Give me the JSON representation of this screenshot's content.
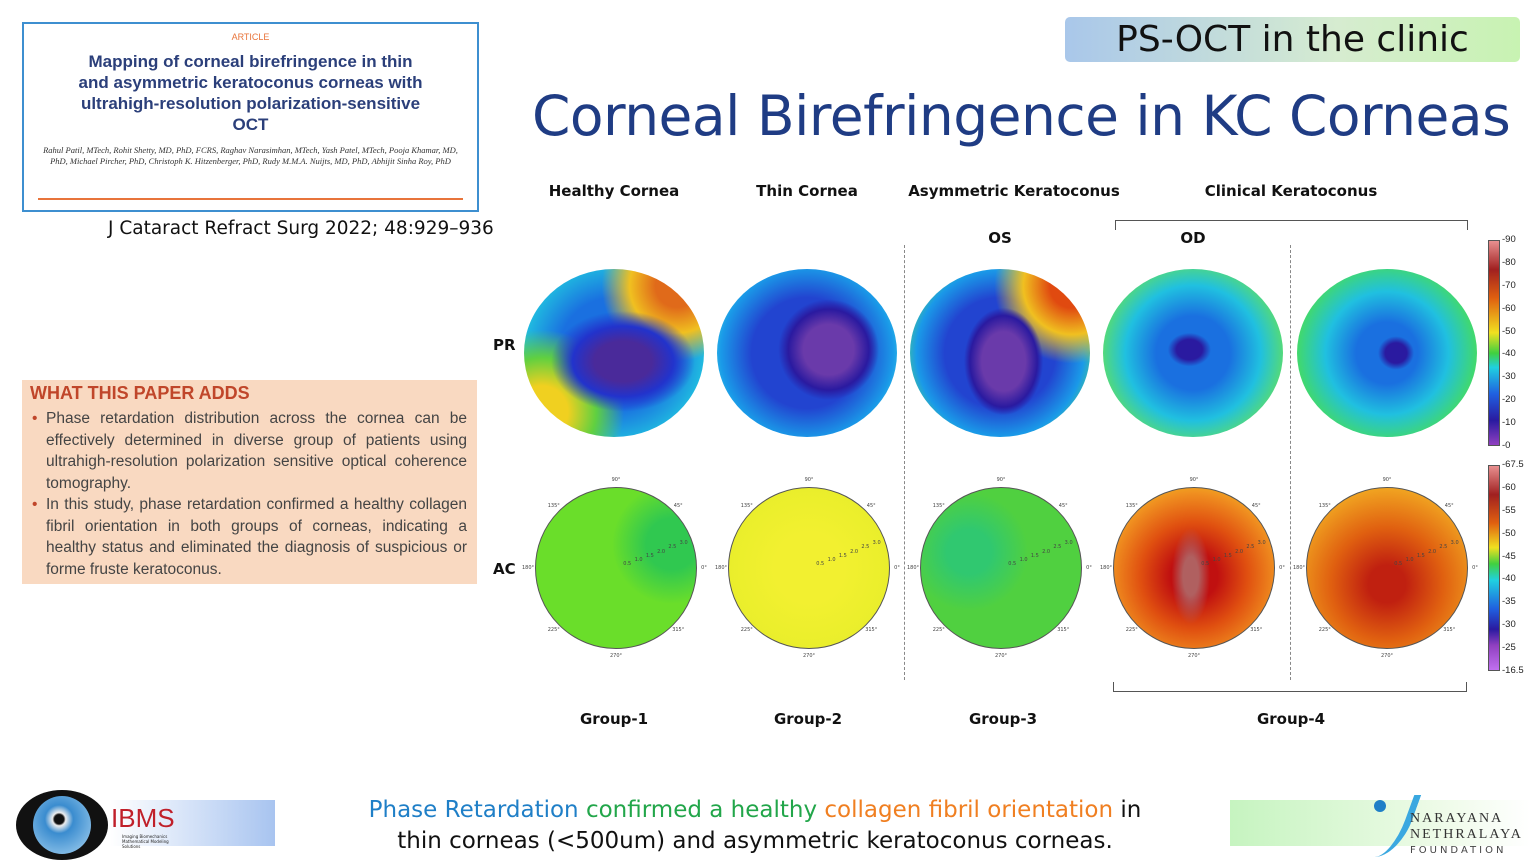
{
  "article": {
    "kind": "ARTICLE",
    "title": "Mapping of corneal birefringence in thin and asymmetric keratoconus corneas with ultrahigh-resolution polarization-sensitive OCT",
    "authors": "Rahul Patil, MTech, Rohit Shetty, MD, PhD, FCRS, Raghav Narasimhan, MTech, Yash Patel, MTech, Pooja Khamar, MD, PhD, Michael Pircher, PhD, Christoph K. Hitzenberger, PhD, Rudy M.M.A. Nuijts, MD, PhD, Abhijit Sinha Roy, PhD",
    "citation": "J Cataract Refract Surg 2022; 48:929–936"
  },
  "adds": {
    "heading": "WHAT THIS PAPER ADDS",
    "bullets": [
      "Phase retardation distribution across the cornea can be effectively determined in diverse group of patients using ultrahigh-resolution polarization sensitive optical coherence tomography.",
      "In this study, phase retardation confirmed a healthy collagen fibril orientation in both groups of corneas, indicating a healthy status and eliminated the diagnosis of suspicious or forme fruste keratoconus."
    ]
  },
  "badge": "PS-OCT in the clinic",
  "title": "Corneal Birefringence in KC Corneas",
  "columns": [
    "Healthy Cornea",
    "Thin Cornea",
    "Asymmetric Keratoconus",
    "Clinical Keratoconus"
  ],
  "eyes": [
    "OS",
    "OD"
  ],
  "rows": [
    "PR",
    "AC"
  ],
  "groups": [
    "Group-1",
    "Group-2",
    "Group-3",
    "Group-4"
  ],
  "polar": {
    "angles": [
      "90°",
      "45°",
      "0°",
      "315°",
      "270°",
      "225°",
      "180°",
      "135°"
    ],
    "rings": [
      "0.5",
      "1.0",
      "1.5",
      "2.0",
      "2.5",
      "3.0"
    ]
  },
  "pr_scale": [
    "90",
    "80",
    "70",
    "60",
    "50",
    "40",
    "30",
    "20",
    "10",
    "0"
  ],
  "ac_scale": [
    "67.5",
    "60",
    "55",
    "50",
    "45",
    "40",
    "35",
    "30",
    "25",
    "16.5"
  ],
  "bottom": {
    "p1": "Phase Retardation",
    "p2": "confirmed a healthy",
    "p3": "collagen fibril orientation",
    "p4": "in",
    "line2": "thin corneas (<500um) and asymmetric keratoconus corneas."
  },
  "logos": {
    "left": "IBMS",
    "left_sub": "Imaging Biomechanics Mathematical Modeling Solutions",
    "right1": "NARAYANA",
    "right2": "NETHRALAYA",
    "right3": "FOUNDATION"
  }
}
